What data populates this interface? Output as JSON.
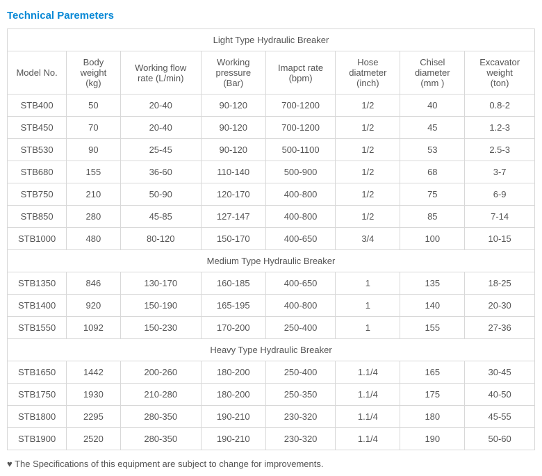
{
  "title": "Technical Paremeters",
  "headers": {
    "model": "Model No.",
    "body_l1": "Body",
    "body_l2": "weight",
    "body_l3": "(kg)",
    "flow_l1": "Working flow",
    "flow_l2": "rate (L/min)",
    "press_l1": "Working",
    "press_l2": "pressure",
    "press_l3": "(Bar)",
    "impact_l1": "Imapct rate",
    "impact_l2": "(bpm)",
    "hose_l1": "Hose",
    "hose_l2": "diatmeter",
    "hose_l3": "(inch)",
    "chisel_l1": "Chisel",
    "chisel_l2": "diameter",
    "chisel_l3": "(mm )",
    "exc_l1": "Excavator",
    "exc_l2": "weight",
    "exc_l3": "(ton)"
  },
  "sections": {
    "light": "Light Type Hydraulic Breaker",
    "medium": "Medium Type Hydraulic Breaker",
    "heavy": "Heavy Type Hydraulic Breaker"
  },
  "light": [
    {
      "m": "STB400",
      "b": "50",
      "f": "20-40",
      "p": "90-120",
      "i": "700-1200",
      "h": "1/2",
      "c": "40",
      "e": "0.8-2"
    },
    {
      "m": "STB450",
      "b": "70",
      "f": "20-40",
      "p": "90-120",
      "i": "700-1200",
      "h": "1/2",
      "c": "45",
      "e": "1.2-3"
    },
    {
      "m": "STB530",
      "b": "90",
      "f": "25-45",
      "p": "90-120",
      "i": "500-1100",
      "h": "1/2",
      "c": "53",
      "e": "2.5-3"
    },
    {
      "m": "STB680",
      "b": "155",
      "f": "36-60",
      "p": "110-140",
      "i": "500-900",
      "h": "1/2",
      "c": "68",
      "e": "3-7"
    },
    {
      "m": "STB750",
      "b": "210",
      "f": "50-90",
      "p": "120-170",
      "i": "400-800",
      "h": "1/2",
      "c": "75",
      "e": "6-9"
    },
    {
      "m": "STB850",
      "b": "280",
      "f": "45-85",
      "p": "127-147",
      "i": "400-800",
      "h": "1/2",
      "c": "85",
      "e": "7-14"
    },
    {
      "m": "STB1000",
      "b": "480",
      "f": "80-120",
      "p": "150-170",
      "i": "400-650",
      "h": "3/4",
      "c": "100",
      "e": "10-15"
    }
  ],
  "medium": [
    {
      "m": "STB1350",
      "b": "846",
      "f": "130-170",
      "p": "160-185",
      "i": "400-650",
      "h": "1",
      "c": "135",
      "e": "18-25"
    },
    {
      "m": "STB1400",
      "b": "920",
      "f": "150-190",
      "p": "165-195",
      "i": "400-800",
      "h": "1",
      "c": "140",
      "e": "20-30"
    },
    {
      "m": "STB1550",
      "b": "1092",
      "f": "150-230",
      "p": "170-200",
      "i": "250-400",
      "h": "1",
      "c": "155",
      "e": "27-36"
    }
  ],
  "heavy": [
    {
      "m": "STB1650",
      "b": "1442",
      "f": "200-260",
      "p": "180-200",
      "i": "250-400",
      "h": "1.1/4",
      "c": "165",
      "e": "30-45"
    },
    {
      "m": "STB1750",
      "b": "1930",
      "f": "210-280",
      "p": "180-200",
      "i": "250-350",
      "h": "1.1/4",
      "c": "175",
      "e": "40-50"
    },
    {
      "m": "STB1800",
      "b": "2295",
      "f": "280-350",
      "p": "190-210",
      "i": "230-320",
      "h": "1.1/4",
      "c": "180",
      "e": "45-55"
    },
    {
      "m": "STB1900",
      "b": "2520",
      "f": "280-350",
      "p": "190-210",
      "i": "230-320",
      "h": "1.1/4",
      "c": "190",
      "e": "50-60"
    }
  ],
  "footnote": "♥ The Specifications of this equipment are subject to change for improvements."
}
